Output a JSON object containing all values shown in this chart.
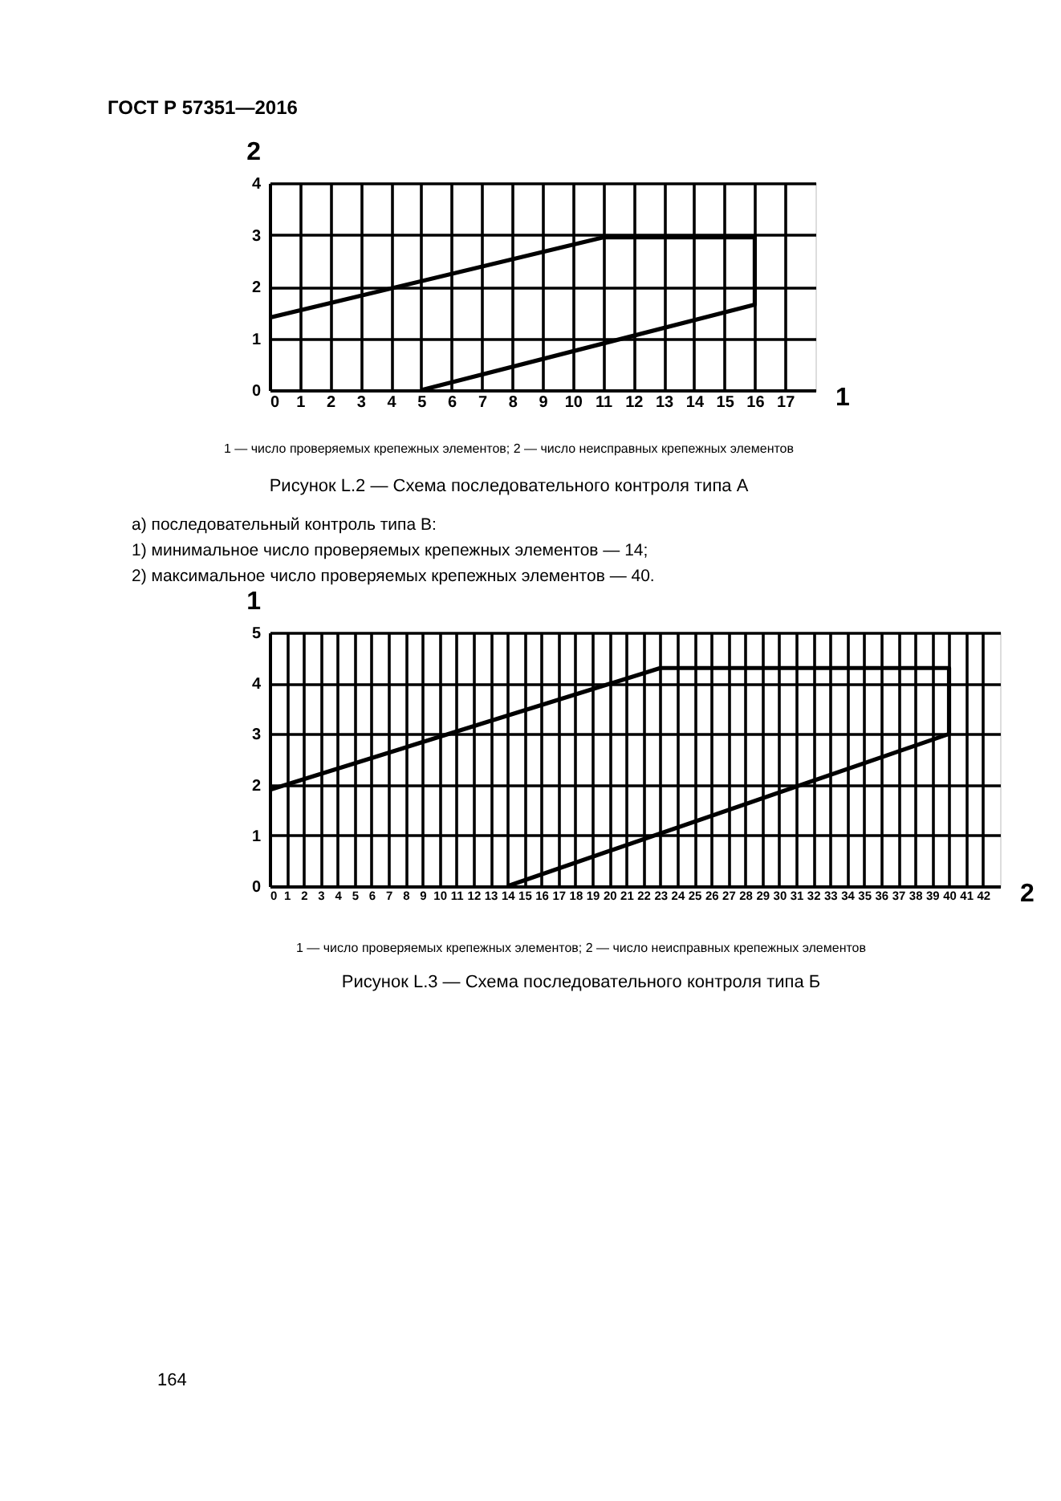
{
  "chart_data": [
    {
      "type": "line",
      "xlabel": "1",
      "ylabel": "2",
      "annotations": [
        "ГОСТ Р 57351—2016",
        "1 — число проверяемых крепежных элементов; 2 — число неисправных крепежных элементов",
        "Рисунок L.2 — Схема последовательного контроля типа А",
        "а)   последовательный контроль типа В:",
        "1)   минимальное число проверяемых крепежных элементов — 14;",
        "2)   максимальное число проверяемых крепежных элементов — 40."
      ],
      "series": [
        {
          "color": "#000000",
          "x": [
            5,
            16,
            16,
            11,
            0
          ],
          "values": [
            0,
            1.65,
            2.95,
            2.95,
            1.4
          ]
        }
      ],
      "xlim": [
        0,
        18
      ],
      "xticks": [
        0,
        1,
        2,
        3,
        4,
        5,
        6,
        7,
        8,
        9,
        10,
        11,
        12,
        13,
        14,
        15,
        16,
        17
      ],
      "ylim": [
        0,
        4
      ],
      "yticks": [
        0,
        1,
        2,
        3,
        4
      ],
      "grid": true
    },
    {
      "type": "line",
      "xlabel": "2",
      "ylabel": "1",
      "annotations": [
        "1 — число проверяемых крепежных элементов; 2 — число неисправных крепежных элементов",
        "Рисунок L.3 — Схема последовательного контроля типа Б",
        "164"
      ],
      "series": [
        {
          "color": "#000000",
          "x": [
            14,
            40,
            40,
            23,
            0
          ],
          "values": [
            0,
            3,
            4.3,
            4.3,
            1.9
          ]
        }
      ],
      "xlim": [
        0,
        43
      ],
      "xticks": [
        0,
        1,
        2,
        3,
        4,
        5,
        6,
        7,
        8,
        9,
        10,
        11,
        12,
        13,
        14,
        15,
        16,
        17,
        18,
        19,
        20,
        21,
        22,
        23,
        24,
        25,
        26,
        27,
        28,
        29,
        30,
        31,
        32,
        33,
        34,
        35,
        36,
        37,
        38,
        39,
        40,
        41,
        42
      ],
      "ylim": [
        0,
        5
      ],
      "yticks": [
        0,
        1,
        2,
        3,
        4,
        5
      ],
      "grid": true
    }
  ]
}
